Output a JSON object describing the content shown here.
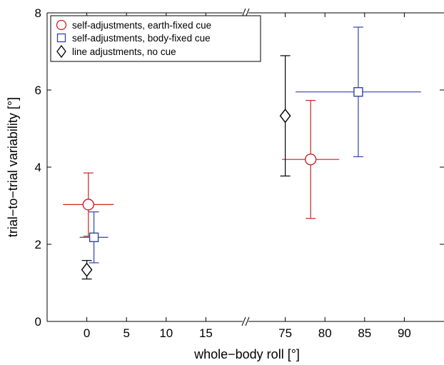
{
  "chart_data": {
    "type": "scatter",
    "xlabel": "whole−body roll [°]",
    "ylabel": "trial−to−trial variability [°]",
    "ylim": [
      0,
      8
    ],
    "y_ticks": [
      0,
      2,
      4,
      6,
      8
    ],
    "x_segments": [
      {
        "xlim": [
          -5,
          20
        ],
        "ticks": [
          0,
          5,
          10,
          15
        ]
      },
      {
        "xlim": [
          70,
          95
        ],
        "ticks": [
          75,
          80,
          85,
          90
        ]
      }
    ],
    "axis_break": "//",
    "legend_position": "top-left",
    "series": [
      {
        "name": "self-adjustments, earth-fixed cue",
        "marker": "circle",
        "color": "#cc2222",
        "points": [
          {
            "x": 0.2,
            "y": 3.03,
            "x_err": 3.2,
            "y_err": 0.82
          },
          {
            "x": 78.2,
            "y": 4.2,
            "x_err": 3.6,
            "y_err": 1.53
          }
        ]
      },
      {
        "name": "self-adjustments, body-fixed cue",
        "marker": "square",
        "color": "#3344aa",
        "points": [
          {
            "x": 0.9,
            "y": 2.18,
            "x_err": 1.8,
            "y_err": 0.66
          },
          {
            "x": 84.2,
            "y": 5.95,
            "x_err": 7.9,
            "y_err": 1.68
          }
        ]
      },
      {
        "name": "line adjustments, no cue",
        "marker": "diamond",
        "color": "#000000",
        "points": [
          {
            "x": 0,
            "y": 1.34,
            "x_err": 0,
            "y_err": 0.24
          },
          {
            "x": 75,
            "y": 5.33,
            "x_err": 0,
            "y_err": 1.56
          }
        ]
      }
    ]
  }
}
